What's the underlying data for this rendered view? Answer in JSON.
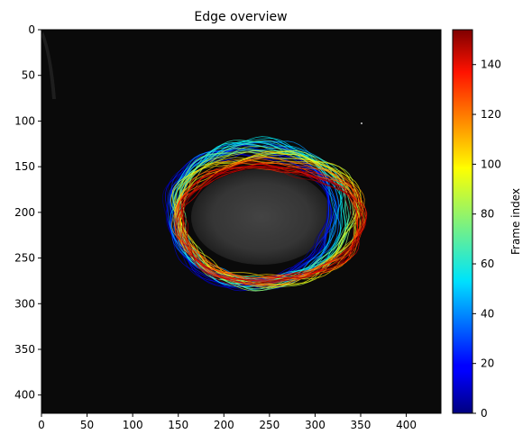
{
  "chart_data": {
    "type": "heatmap",
    "title": "Edge overview",
    "x_axis": {
      "range": [
        0,
        438
      ],
      "ticks": [
        0,
        50,
        100,
        150,
        200,
        250,
        300,
        350,
        400
      ]
    },
    "y_axis": {
      "range": [
        420,
        0
      ],
      "inverted": true,
      "ticks": [
        0,
        50,
        100,
        150,
        200,
        250,
        300,
        350,
        400
      ]
    },
    "background": {
      "description_color": "#0a0a0a",
      "blob_color": "#3a3a3a"
    },
    "colorbar": {
      "label": "Frame index",
      "range": [
        0,
        154
      ],
      "ticks": [
        0,
        20,
        40,
        60,
        80,
        100,
        120,
        140
      ],
      "colormap": "jet"
    },
    "contours": [
      {
        "frame": 5,
        "cx": 225,
        "cy": 205,
        "rx": 88,
        "ry": 75
      },
      {
        "frame": 30,
        "cx": 232,
        "cy": 200,
        "rx": 88,
        "ry": 78
      },
      {
        "frame": 55,
        "cx": 238,
        "cy": 198,
        "rx": 90,
        "ry": 80
      },
      {
        "frame": 80,
        "cx": 245,
        "cy": 203,
        "rx": 95,
        "ry": 77
      },
      {
        "frame": 105,
        "cx": 250,
        "cy": 205,
        "rx": 100,
        "ry": 70
      },
      {
        "frame": 130,
        "cx": 250,
        "cy": 210,
        "rx": 100,
        "ry": 65
      },
      {
        "frame": 150,
        "cx": 248,
        "cy": 213,
        "rx": 97,
        "ry": 65
      }
    ]
  }
}
